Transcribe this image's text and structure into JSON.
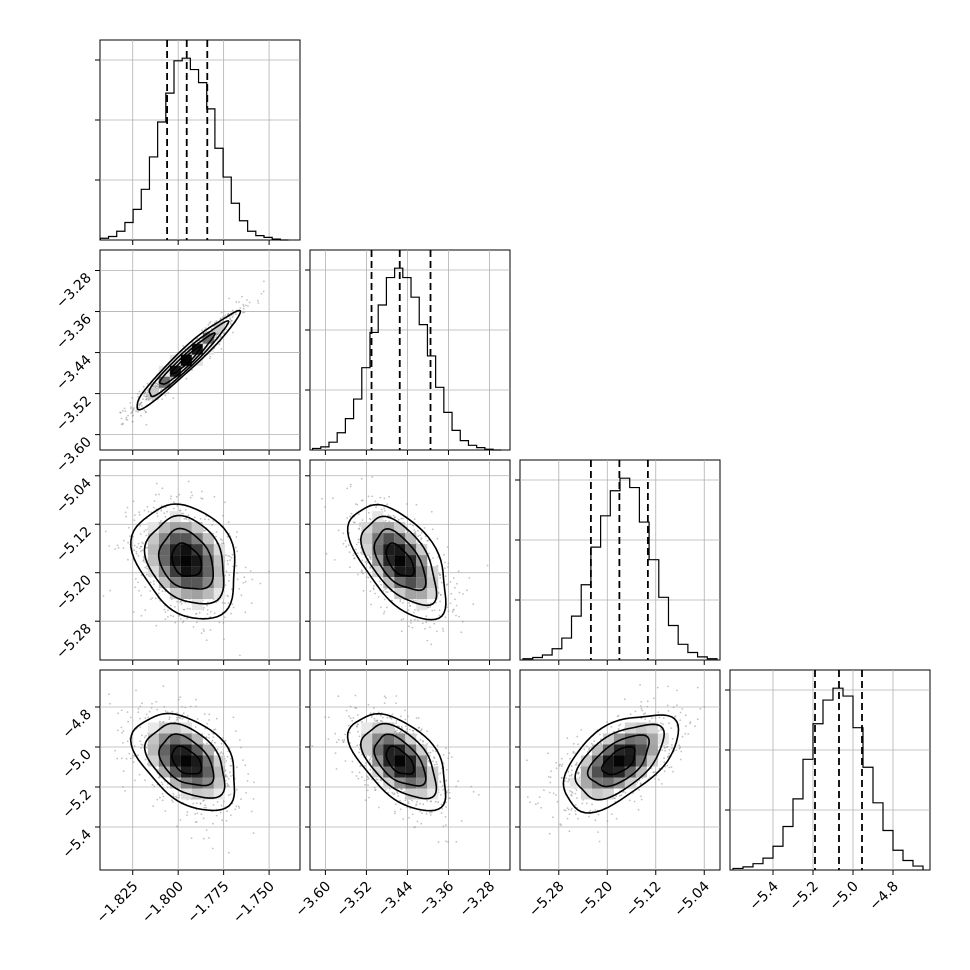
{
  "chart_data": {
    "type": "corner",
    "parameters": 4,
    "grid": true,
    "diagonal": [
      {
        "param": 0,
        "range": [
          -1.843,
          -1.733
        ],
        "bins": [
          -1.8428,
          -1.8383,
          -1.8338,
          -1.8293,
          -1.8248,
          -1.8203,
          -1.8158,
          -1.8113,
          -1.8068,
          -1.8023,
          -1.7978,
          -1.7933,
          -1.7888,
          -1.7843,
          -1.7798,
          -1.7753,
          -1.7708,
          -1.7663,
          -1.7618,
          -1.7573,
          -1.7528,
          -1.7483,
          -1.7438,
          -1.7393
        ],
        "counts": [
          2,
          4,
          10,
          20,
          35,
          58,
          95,
          135,
          168,
          205,
          208,
          195,
          180,
          150,
          105,
          72,
          42,
          22,
          10,
          5,
          3,
          1,
          0
        ],
        "quantiles": [
          -1.8061,
          -1.7953,
          -1.784
        ],
        "ticks": [
          -1.825,
          -1.8,
          -1.775,
          -1.75
        ]
      },
      {
        "param": 1,
        "range": [
          -3.63,
          -3.24
        ],
        "bins": [
          -3.625,
          -3.609,
          -3.593,
          -3.577,
          -3.561,
          -3.545,
          -3.529,
          -3.513,
          -3.497,
          -3.481,
          -3.465,
          -3.449,
          -3.433,
          -3.417,
          -3.401,
          -3.385,
          -3.369,
          -3.353,
          -3.337,
          -3.321,
          -3.305,
          -3.289,
          -3.273,
          -3.257
        ],
        "counts": [
          2,
          4,
          10,
          22,
          40,
          65,
          105,
          150,
          185,
          220,
          232,
          220,
          195,
          160,
          120,
          80,
          48,
          25,
          12,
          6,
          3,
          1,
          0
        ],
        "quantiles": [
          -3.51,
          -3.455,
          -3.395
        ],
        "ticks": [
          -3.6,
          -3.52,
          -3.44,
          -3.36,
          -3.28
        ]
      },
      {
        "param": 2,
        "range": [
          -5.344,
          -5.014
        ],
        "bins": [
          -5.339,
          -5.323,
          -5.307,
          -5.291,
          -5.275,
          -5.259,
          -5.243,
          -5.227,
          -5.211,
          -5.195,
          -5.179,
          -5.163,
          -5.147,
          -5.131,
          -5.115,
          -5.099,
          -5.083,
          -5.067,
          -5.051,
          -5.035,
          -5.019
        ],
        "counts": [
          2,
          4,
          8,
          18,
          35,
          70,
          120,
          180,
          230,
          270,
          290,
          275,
          220,
          160,
          100,
          55,
          25,
          12,
          5,
          2
        ],
        "quantiles": [
          -5.227,
          -5.18,
          -5.133
        ],
        "ticks": [
          -5.28,
          -5.2,
          -5.12,
          -5.04
        ]
      },
      {
        "param": 3,
        "range": [
          -5.615,
          -4.615
        ],
        "bins": [
          -5.6,
          -5.55,
          -5.5,
          -5.45,
          -5.4,
          -5.35,
          -5.3,
          -5.25,
          -5.2,
          -5.15,
          -5.1,
          -5.05,
          -5.0,
          -4.95,
          -4.9,
          -4.85,
          -4.8,
          -4.75,
          -4.7,
          -4.65
        ],
        "counts": [
          2,
          4,
          8,
          15,
          30,
          55,
          90,
          140,
          185,
          215,
          230,
          220,
          180,
          130,
          85,
          50,
          25,
          12,
          5
        ],
        "quantiles": [
          -5.19,
          -5.07,
          -4.955
        ],
        "ticks": [
          -5.4,
          -5.2,
          -5.0,
          -4.8
        ]
      }
    ],
    "pairs": [
      {
        "x": 0,
        "y": 1,
        "center": [
          -1.7955,
          -3.455
        ],
        "sd": [
          0.0135,
          0.045
        ],
        "rho": 0.96
      },
      {
        "x": 0,
        "y": 2,
        "center": [
          -1.7955,
          -5.18
        ],
        "sd": [
          0.0135,
          0.045
        ],
        "rho": -0.25
      },
      {
        "x": 1,
        "y": 2,
        "center": [
          -3.455,
          -5.18
        ],
        "sd": [
          0.045,
          0.045
        ],
        "rho": -0.55
      },
      {
        "x": 0,
        "y": 3,
        "center": [
          -1.7955,
          -5.07
        ],
        "sd": [
          0.0135,
          0.115
        ],
        "rho": -0.42
      },
      {
        "x": 1,
        "y": 3,
        "center": [
          -3.455,
          -5.07
        ],
        "sd": [
          0.045,
          0.115
        ],
        "rho": -0.52
      },
      {
        "x": 2,
        "y": 3,
        "center": [
          -5.18,
          -5.07
        ],
        "sd": [
          0.045,
          0.115
        ],
        "rho": 0.55
      }
    ],
    "y_ticks": {
      "1": [
        -3.28,
        -3.36,
        -3.44,
        -3.52,
        -3.6
      ],
      "2": [
        -5.04,
        -5.12,
        -5.2,
        -5.28
      ],
      "3": [
        -4.8,
        -5.0,
        -5.2,
        -5.4
      ]
    },
    "tick_labels": {
      "x0": [
        "−1.825",
        "−1.800",
        "−1.775",
        "−1.750"
      ],
      "x1": [
        "−3.60",
        "−3.52",
        "−3.44",
        "−3.36",
        "−3.28"
      ],
      "x2": [
        "−5.28",
        "−5.20",
        "−5.12",
        "−5.04"
      ],
      "x3": [
        "−5.4",
        "−5.2",
        "−5.0",
        "−4.8"
      ],
      "y1": [
        "−3.28",
        "−3.36",
        "−3.44",
        "−3.52",
        "−3.60"
      ],
      "y2": [
        "−5.04",
        "−5.12",
        "−5.20",
        "−5.28"
      ],
      "y3": [
        "−4.8",
        "−5.0",
        "−5.2",
        "−5.4"
      ]
    }
  }
}
